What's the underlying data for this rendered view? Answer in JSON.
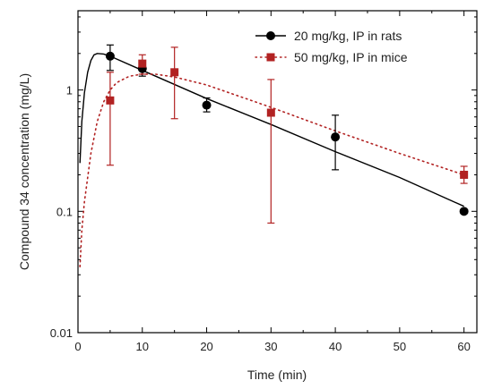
{
  "chart_data": {
    "type": "scatter",
    "title": "",
    "xlabel": "Time (min)",
    "ylabel": "Compound 34 concentration (mg/L)",
    "xlim": [
      0,
      62
    ],
    "ylim": [
      0.01,
      4.5
    ],
    "y_scale": "log",
    "x_ticks": [
      0,
      10,
      20,
      30,
      40,
      50,
      60
    ],
    "y_ticks": [
      0.01,
      0.1,
      1
    ],
    "x_tick_labels": [
      "0",
      "10",
      "20",
      "30",
      "40",
      "50",
      "60"
    ],
    "y_tick_labels": [
      "0.01",
      "0.1",
      "1"
    ],
    "legend_position": "top-right",
    "series": [
      {
        "name": "20 mg/kg, IP in rats",
        "marker": "circle",
        "color": "#000000",
        "fit_line": "solid",
        "points": [
          {
            "x": 5,
            "y": 1.9,
            "err_low": 1.45,
            "err_high": 2.35
          },
          {
            "x": 10,
            "y": 1.5,
            "err_low": 1.3,
            "err_high": 1.75
          },
          {
            "x": 20,
            "y": 0.75,
            "err_low": 0.66,
            "err_high": 0.86
          },
          {
            "x": 40,
            "y": 0.41,
            "err_low": 0.22,
            "err_high": 0.62
          },
          {
            "x": 60,
            "y": 0.1
          }
        ],
        "fit_curve": [
          {
            "x": 0.3,
            "y": 0.25
          },
          {
            "x": 0.6,
            "y": 0.55
          },
          {
            "x": 1,
            "y": 0.95
          },
          {
            "x": 1.5,
            "y": 1.4
          },
          {
            "x": 2,
            "y": 1.75
          },
          {
            "x": 2.5,
            "y": 1.95
          },
          {
            "x": 3,
            "y": 2.0
          },
          {
            "x": 4,
            "y": 1.98
          },
          {
            "x": 5,
            "y": 1.9
          },
          {
            "x": 10,
            "y": 1.45
          },
          {
            "x": 20,
            "y": 0.85
          },
          {
            "x": 30,
            "y": 0.52
          },
          {
            "x": 40,
            "y": 0.31
          },
          {
            "x": 50,
            "y": 0.19
          },
          {
            "x": 60,
            "y": 0.11
          }
        ]
      },
      {
        "name": "50 mg/kg, IP in mice",
        "marker": "square",
        "color": "#b22222",
        "fit_line": "dotted",
        "points": [
          {
            "x": 5,
            "y": 0.82,
            "err_low": 0.24,
            "err_high": 1.4
          },
          {
            "x": 10,
            "y": 1.65,
            "err_low": 1.35,
            "err_high": 1.95
          },
          {
            "x": 15,
            "y": 1.4,
            "err_low": 0.58,
            "err_high": 2.25
          },
          {
            "x": 30,
            "y": 0.65,
            "err_low": 0.08,
            "err_high": 1.22
          },
          {
            "x": 60,
            "y": 0.2,
            "err_low": 0.17,
            "err_high": 0.235
          }
        ],
        "fit_curve": [
          {
            "x": 0.3,
            "y": 0.035
          },
          {
            "x": 0.6,
            "y": 0.07
          },
          {
            "x": 1,
            "y": 0.12
          },
          {
            "x": 2,
            "y": 0.3
          },
          {
            "x": 3,
            "y": 0.55
          },
          {
            "x": 4,
            "y": 0.8
          },
          {
            "x": 5,
            "y": 1.0
          },
          {
            "x": 6,
            "y": 1.15
          },
          {
            "x": 8,
            "y": 1.3
          },
          {
            "x": 10,
            "y": 1.35
          },
          {
            "x": 12,
            "y": 1.35
          },
          {
            "x": 15,
            "y": 1.28
          },
          {
            "x": 20,
            "y": 1.1
          },
          {
            "x": 30,
            "y": 0.72
          },
          {
            "x": 40,
            "y": 0.46
          },
          {
            "x": 50,
            "y": 0.3
          },
          {
            "x": 60,
            "y": 0.2
          }
        ]
      }
    ]
  }
}
